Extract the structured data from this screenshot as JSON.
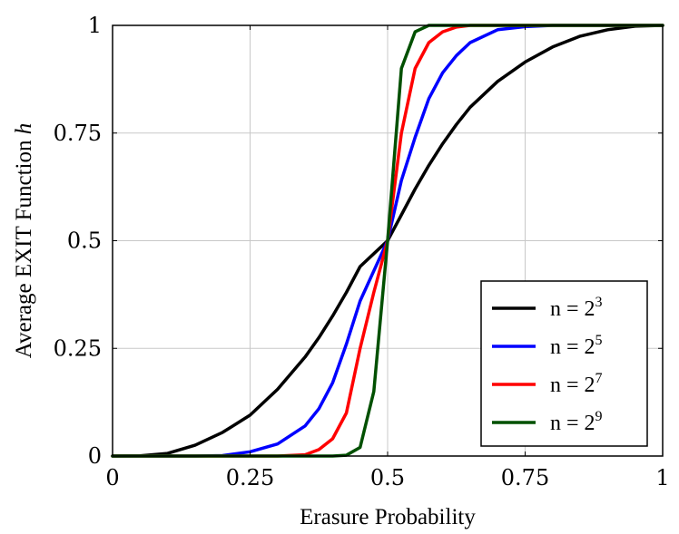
{
  "chart_data": {
    "type": "line",
    "title": "",
    "xlabel": "Erasure Probability",
    "ylabel_main": "Average EXIT Function ",
    "ylabel_var": "h",
    "xlim": [
      0,
      1
    ],
    "ylim": [
      0,
      1
    ],
    "grid": true,
    "legend_position": "bottom-right",
    "x_ticks": [
      0,
      0.25,
      0.5,
      0.75,
      1
    ],
    "x_tick_labels": [
      "0",
      "0.25",
      "0.5",
      "0.75",
      "1"
    ],
    "y_ticks": [
      0,
      0.25,
      0.5,
      0.75,
      1
    ],
    "y_tick_labels": [
      "0",
      "0.25",
      "0.5",
      "0.75",
      "1"
    ],
    "x": [
      0,
      0.05,
      0.1,
      0.15,
      0.2,
      0.25,
      0.3,
      0.35,
      0.375,
      0.4,
      0.425,
      0.45,
      0.475,
      0.5,
      0.525,
      0.55,
      0.575,
      0.6,
      0.625,
      0.65,
      0.7,
      0.75,
      0.8,
      0.85,
      0.9,
      0.95,
      1
    ],
    "series": [
      {
        "legend_prefix": "n = 2",
        "legend_exp": "3",
        "color": "#000000",
        "values": [
          0,
          0.0005,
          0.006,
          0.025,
          0.055,
          0.095,
          0.155,
          0.23,
          0.275,
          0.325,
          0.38,
          0.44,
          0.47,
          0.5,
          0.56,
          0.62,
          0.675,
          0.725,
          0.77,
          0.81,
          0.87,
          0.915,
          0.95,
          0.975,
          0.99,
          0.998,
          1
        ]
      },
      {
        "legend_prefix": "n = 2",
        "legend_exp": "5",
        "color": "#0000ff",
        "values": [
          0,
          0,
          0,
          0,
          0.001,
          0.01,
          0.028,
          0.07,
          0.11,
          0.17,
          0.26,
          0.36,
          0.43,
          0.5,
          0.64,
          0.74,
          0.83,
          0.89,
          0.93,
          0.96,
          0.99,
          0.997,
          1,
          1,
          1,
          1,
          1
        ]
      },
      {
        "legend_prefix": "n = 2",
        "legend_exp": "7",
        "color": "#ff0000",
        "values": [
          0,
          0,
          0,
          0,
          0,
          0,
          0,
          0.003,
          0.015,
          0.04,
          0.1,
          0.25,
          0.38,
          0.5,
          0.75,
          0.9,
          0.96,
          0.985,
          0.996,
          1,
          1,
          1,
          1,
          1,
          1,
          1,
          1
        ]
      },
      {
        "legend_prefix": "n = 2",
        "legend_exp": "9",
        "color": "#005000",
        "values": [
          0,
          0,
          0,
          0,
          0,
          0,
          0,
          0,
          0,
          0,
          0.002,
          0.02,
          0.15,
          0.5,
          0.9,
          0.985,
          1,
          1,
          1,
          1,
          1,
          1,
          1,
          1,
          1,
          1,
          1
        ]
      }
    ]
  }
}
